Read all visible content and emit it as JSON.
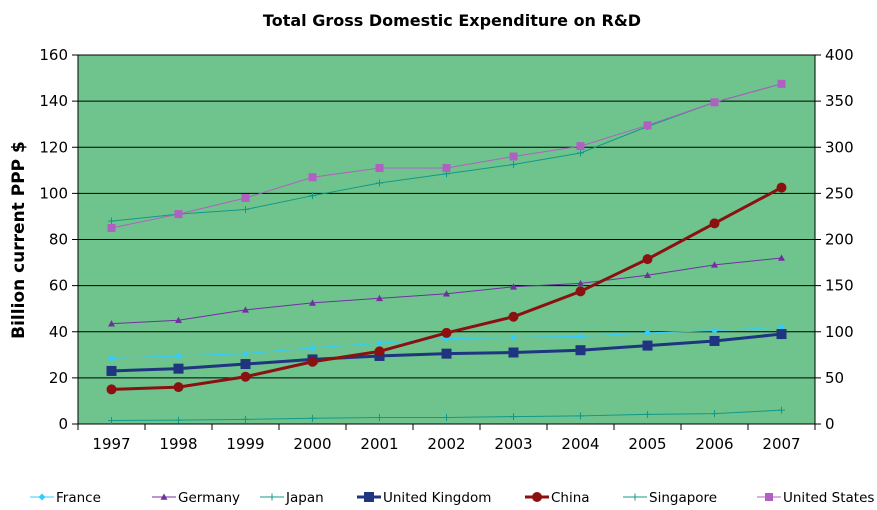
{
  "chart_data": {
    "type": "line",
    "title": "Total Gross Domestic Expenditure on R&D",
    "xlabel": "",
    "ylabel": "Billion current PPP $",
    "ylim": [
      0,
      160
    ],
    "y2lim": [
      0,
      400
    ],
    "yticks": [
      "0",
      "20",
      "40",
      "60",
      "80",
      "100",
      "120",
      "140",
      "160"
    ],
    "y2ticks": [
      "0",
      "50",
      "100",
      "150",
      "200",
      "250",
      "300",
      "350",
      "400"
    ],
    "grid": true,
    "legend": "bottom",
    "background_color": "#6fc48e",
    "categories": [
      "1997",
      "1998",
      "1999",
      "2000",
      "2001",
      "2002",
      "2003",
      "2004",
      "2005",
      "2006",
      "2007"
    ],
    "series": [
      {
        "name": "France",
        "axis": "left",
        "color": "#33ccff",
        "marker": "diamond",
        "width": 1,
        "values": [
          28.5,
          29.5,
          30.5,
          33,
          35,
          37,
          37.5,
          38,
          39.5,
          40.5,
          42
        ]
      },
      {
        "name": "Germany",
        "axis": "left",
        "color": "#7030a0",
        "marker": "triangle",
        "width": 1,
        "values": [
          43.5,
          45,
          49.5,
          52.5,
          54.5,
          56.5,
          59.5,
          61,
          64.5,
          69,
          72
        ]
      },
      {
        "name": "Japan",
        "axis": "left",
        "color": "#119988",
        "marker": "plus",
        "width": 1,
        "values": [
          88,
          91,
          93,
          99,
          104.5,
          108.5,
          112.5,
          117.5,
          129,
          139.5,
          147.5
        ]
      },
      {
        "name": "United Kingdom",
        "axis": "left",
        "color": "#1f3580",
        "marker": "square",
        "width": 3,
        "values": [
          23,
          24,
          26,
          28,
          29.5,
          30.5,
          31,
          32,
          34,
          36,
          39
        ]
      },
      {
        "name": "China",
        "axis": "left",
        "color": "#8b1010",
        "marker": "circle",
        "width": 3,
        "values": [
          15,
          16,
          20.5,
          27,
          31.5,
          39.5,
          46.5,
          57.5,
          71.5,
          87,
          102.5
        ]
      },
      {
        "name": "Singapore",
        "axis": "left",
        "color": "#119988",
        "marker": "plus",
        "width": 1,
        "values": [
          1.5,
          1.7,
          2,
          2.5,
          2.8,
          2.8,
          3.2,
          3.5,
          4.2,
          4.5,
          6
        ]
      },
      {
        "name": "United States",
        "axis": "left",
        "color": "#b060c0",
        "marker": "square",
        "width": 1,
        "values": [
          85,
          91,
          98,
          107,
          111,
          111,
          116,
          120.5,
          129.5,
          139.5,
          147.5
        ]
      }
    ]
  }
}
